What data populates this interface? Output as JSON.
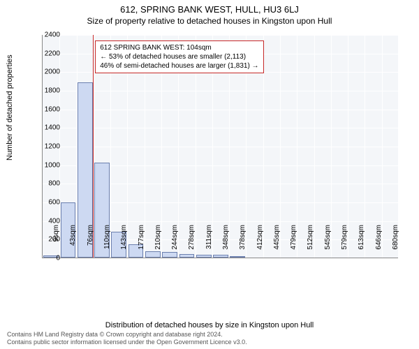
{
  "title": "612, SPRING BANK WEST, HULL, HU3 6LJ",
  "subtitle": "Size of property relative to detached houses in Kingston upon Hull",
  "chart": {
    "type": "histogram",
    "ylabel": "Number of detached properties",
    "xlabel": "Distribution of detached houses by size in Kingston upon Hull",
    "ylim": [
      0,
      2400
    ],
    "ytick_step": 200,
    "xticks": [
      "9sqm",
      "43sqm",
      "76sqm",
      "110sqm",
      "143sqm",
      "177sqm",
      "210sqm",
      "244sqm",
      "278sqm",
      "311sqm",
      "348sqm",
      "378sqm",
      "412sqm",
      "445sqm",
      "479sqm",
      "512sqm",
      "545sqm",
      "579sqm",
      "613sqm",
      "646sqm",
      "680sqm"
    ],
    "bars": [
      20,
      590,
      1880,
      1020,
      280,
      140,
      70,
      60,
      40,
      30,
      30,
      10,
      0,
      0,
      0,
      0,
      0,
      0,
      0,
      0,
      0
    ],
    "bar_color": "#cdd9f2",
    "bar_border": "#6b7fae",
    "plot_background": "#f4f6f9",
    "grid_color": "#ffffff",
    "bar_width": 0.9,
    "marker_position": 104,
    "marker_color": "#c62828",
    "x_range": [
      9,
      680
    ]
  },
  "annotation": {
    "line1": "612 SPRING BANK WEST: 104sqm",
    "line2": "← 53% of detached houses are smaller (2,113)",
    "line3": "46% of semi-detached houses are larger (1,831) →",
    "border_color": "#c62828",
    "fontsize": 10
  },
  "footer": {
    "line1": "Contains HM Land Registry data © Crown copyright and database right 2024.",
    "line2": "Contains public sector information licensed under the Open Government Licence v3.0.",
    "color": "#555555",
    "fontsize": 9
  }
}
